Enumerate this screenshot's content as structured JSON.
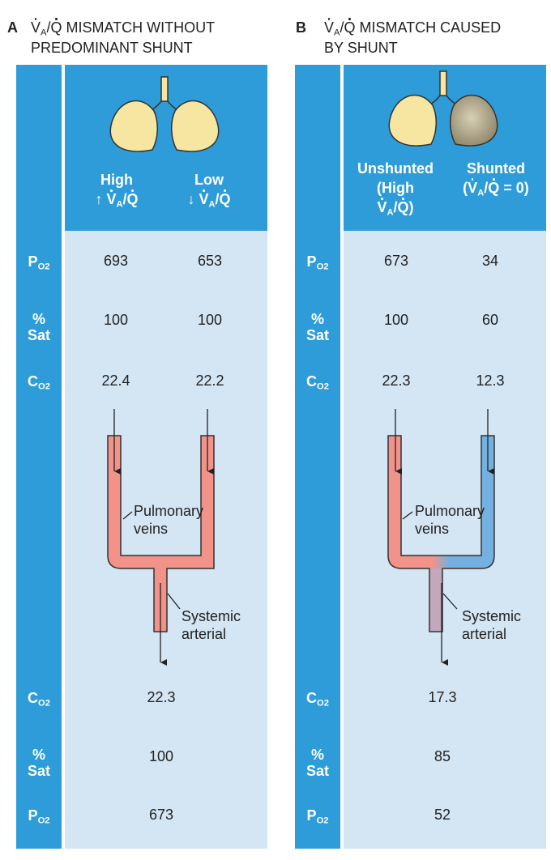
{
  "panels": [
    {
      "letter": "A",
      "title_line1_post": " MISMATCH WITHOUT",
      "title_line2": "PREDOMINANT SHUNT",
      "col_left_header": "High",
      "col_left_arrow": "↑",
      "col_right_header": "Low",
      "col_right_arrow": "↓",
      "upper_rows": [
        {
          "label": "P",
          "label_sub": "O2",
          "left": "693",
          "right": "653"
        },
        {
          "label": "%",
          "label2": "Sat",
          "left": "100",
          "right": "100"
        },
        {
          "label": "C",
          "label_sub": "O2",
          "left": "22.4",
          "right": "22.2"
        }
      ],
      "vessel_label_1": "Pulmonary",
      "vessel_label_2": "veins",
      "arterial_label_1": "Systemic",
      "arterial_label_2": "arterial",
      "lower_rows": [
        {
          "label": "C",
          "label_sub": "O2",
          "value": "22.3"
        },
        {
          "label": "%",
          "label2": "Sat",
          "value": "100"
        },
        {
          "label": "P",
          "label_sub": "O2",
          "value": "673"
        }
      ]
    },
    {
      "letter": "B",
      "title_line1_post": " MISMATCH CAUSED",
      "title_line2": "BY SHUNT",
      "col_left_header": "Unshunted",
      "col_left_header2": "(High",
      "col_left_header3_post": ")",
      "col_right_header": "Shunted",
      "col_right_header2_pre": "(",
      "col_right_header2_post": " = 0)",
      "upper_rows": [
        {
          "label": "P",
          "label_sub": "O2",
          "left": "673",
          "right": "34"
        },
        {
          "label": "%",
          "label2": "Sat",
          "left": "100",
          "right": "60"
        },
        {
          "label": "C",
          "label_sub": "O2",
          "left": "22.3",
          "right": "12.3"
        }
      ],
      "vessel_label_1": "Pulmonary",
      "vessel_label_2": "veins",
      "arterial_label_1": "Systemic",
      "arterial_label_2": "arterial",
      "lower_rows": [
        {
          "label": "C",
          "label_sub": "O2",
          "value": "17.3"
        },
        {
          "label": "%",
          "label2": "Sat",
          "value": "85"
        },
        {
          "label": "P",
          "label_sub": "O2",
          "value": "52"
        }
      ]
    }
  ],
  "symbols": {
    "v": "V",
    "a_sub": "A",
    "slash": "/",
    "q": "Q"
  },
  "colors": {
    "sidebar_blue": "#2e9cd8",
    "body_light_blue": "#d4e5f3",
    "lung_yellow": "#f7e6a2",
    "shunted_lung": "#b5aa8c",
    "vessel_red": "#f2938a",
    "vessel_blue": "#74b0e0"
  }
}
